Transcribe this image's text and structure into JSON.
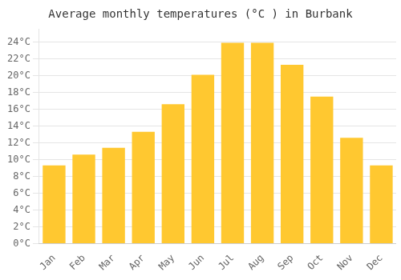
{
  "chart_data": {
    "type": "bar",
    "title": "Average monthly temperatures (°C ) in Burbank",
    "categories": [
      "Jan",
      "Feb",
      "Mar",
      "Apr",
      "May",
      "Jun",
      "Jul",
      "Aug",
      "Sep",
      "Oct",
      "Nov",
      "Dec"
    ],
    "values": [
      9.3,
      10.6,
      11.4,
      13.3,
      16.6,
      20.1,
      23.9,
      23.9,
      21.3,
      17.5,
      12.6,
      9.3
    ],
    "color": "#FFC830",
    "ylim": [
      0,
      25.5
    ],
    "yticks": [
      {
        "value": 0,
        "label": "0°C"
      },
      {
        "value": 2,
        "label": "2°C"
      },
      {
        "value": 4,
        "label": "4°C"
      },
      {
        "value": 6,
        "label": "6°C"
      },
      {
        "value": 8,
        "label": "8°C"
      },
      {
        "value": 10,
        "label": "10°C"
      },
      {
        "value": 12,
        "label": "12°C"
      },
      {
        "value": 14,
        "label": "14°C"
      },
      {
        "value": 16,
        "label": "16°C"
      },
      {
        "value": 18,
        "label": "18°C"
      },
      {
        "value": 20,
        "label": "20°C"
      },
      {
        "value": 22,
        "label": "22°C"
      },
      {
        "value": 24,
        "label": "24°C"
      }
    ],
    "grid": true
  }
}
